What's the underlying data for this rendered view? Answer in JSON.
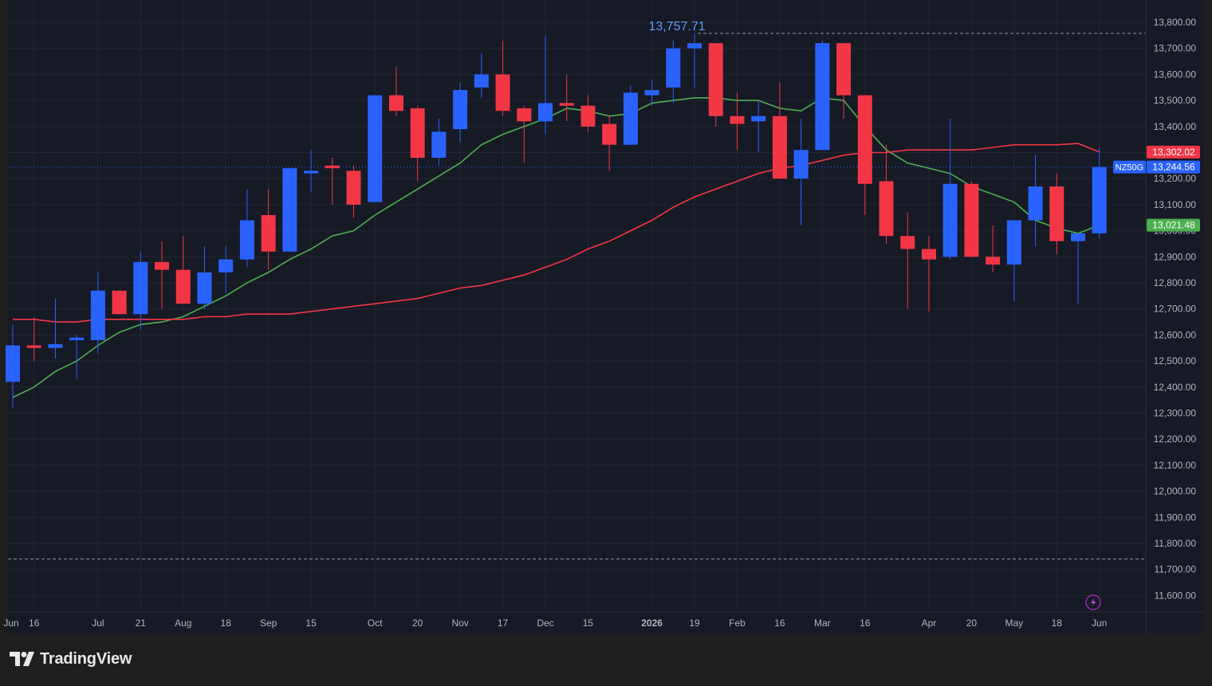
{
  "branding": {
    "logo_text": "TradingView"
  },
  "chart_data": {
    "type": "candlestick",
    "symbol": "NZ50G",
    "interval": "weekly",
    "y_axis": {
      "min": 11550,
      "max": 13850,
      "ticks": [
        11600,
        11700,
        11800,
        11900,
        12000,
        12100,
        12200,
        12300,
        12400,
        12500,
        12600,
        12700,
        12800,
        12900,
        13000,
        13100,
        13200,
        13300,
        13400,
        13500,
        13600,
        13700,
        13800
      ],
      "tick_labels": [
        "11,600.00",
        "11,700.00",
        "11,800.00",
        "11,900.00",
        "12,000.00",
        "12,100.00",
        "12,200.00",
        "12,300.00",
        "12,400.00",
        "12,500.00",
        "12,600.00",
        "12,700.00",
        "12,800.00",
        "12,900.00",
        "13,000.00",
        "13,100.00",
        "13,200.00",
        "13,300.00",
        "13,400.00",
        "13,500.00",
        "13,600.00",
        "13,700.00",
        "13,800.00"
      ]
    },
    "x_axis": {
      "labels": [
        {
          "text": "Jun",
          "bar": -0.8
        },
        {
          "text": "16",
          "bar": 1
        },
        {
          "text": "Jul",
          "bar": 4
        },
        {
          "text": "21",
          "bar": 6
        },
        {
          "text": "Aug",
          "bar": 8
        },
        {
          "text": "18",
          "bar": 10
        },
        {
          "text": "Sep",
          "bar": 12
        },
        {
          "text": "15",
          "bar": 14
        },
        {
          "text": "Oct",
          "bar": 17
        },
        {
          "text": "20",
          "bar": 19
        },
        {
          "text": "Nov",
          "bar": 21
        },
        {
          "text": "17",
          "bar": 23
        },
        {
          "text": "Dec",
          "bar": 25
        },
        {
          "text": "15",
          "bar": 27
        },
        {
          "text": "2026",
          "bar": 30
        },
        {
          "text": "19",
          "bar": 32
        },
        {
          "text": "Feb",
          "bar": 34
        },
        {
          "text": "16",
          "bar": 36
        },
        {
          "text": "Mar",
          "bar": 38
        },
        {
          "text": "16",
          "bar": 40
        },
        {
          "text": "Apr",
          "bar": 43
        },
        {
          "text": "20",
          "bar": 45
        },
        {
          "text": "May",
          "bar": 47
        },
        {
          "text": "18",
          "bar": 49
        },
        {
          "text": "Jun",
          "bar": 51
        }
      ]
    },
    "candles": [
      {
        "o": 12420,
        "h": 12640,
        "l": 12320,
        "c": 12560
      },
      {
        "o": 12560,
        "h": 12670,
        "l": 12500,
        "c": 12550
      },
      {
        "o": 12550,
        "h": 12740,
        "l": 12510,
        "c": 12565
      },
      {
        "o": 12580,
        "h": 12600,
        "l": 12430,
        "c": 12590
      },
      {
        "o": 12580,
        "h": 12840,
        "l": 12530,
        "c": 12770
      },
      {
        "o": 12770,
        "h": 12770,
        "l": 12680,
        "c": 12680
      },
      {
        "o": 12680,
        "h": 12920,
        "l": 12620,
        "c": 12880
      },
      {
        "o": 12880,
        "h": 12960,
        "l": 12700,
        "c": 12850
      },
      {
        "o": 12850,
        "h": 12980,
        "l": 12720,
        "c": 12720
      },
      {
        "o": 12720,
        "h": 12940,
        "l": 12700,
        "c": 12840
      },
      {
        "o": 12840,
        "h": 12940,
        "l": 12760,
        "c": 12890
      },
      {
        "o": 12890,
        "h": 13160,
        "l": 12860,
        "c": 13040
      },
      {
        "o": 13060,
        "h": 13160,
        "l": 12850,
        "c": 12920
      },
      {
        "o": 12920,
        "h": 13240,
        "l": 12920,
        "c": 13240
      },
      {
        "o": 13220,
        "h": 13310,
        "l": 13150,
        "c": 13230
      },
      {
        "o": 13250,
        "h": 13280,
        "l": 13100,
        "c": 13240
      },
      {
        "o": 13230,
        "h": 13250,
        "l": 13050,
        "c": 13100
      },
      {
        "o": 13110,
        "h": 13520,
        "l": 13110,
        "c": 13520
      },
      {
        "o": 13520,
        "h": 13630,
        "l": 13440,
        "c": 13460
      },
      {
        "o": 13470,
        "h": 13480,
        "l": 13190,
        "c": 13280
      },
      {
        "o": 13280,
        "h": 13430,
        "l": 13250,
        "c": 13380
      },
      {
        "o": 13390,
        "h": 13570,
        "l": 13340,
        "c": 13540
      },
      {
        "o": 13550,
        "h": 13680,
        "l": 13510,
        "c": 13600
      },
      {
        "o": 13600,
        "h": 13730,
        "l": 13440,
        "c": 13460
      },
      {
        "o": 13470,
        "h": 13480,
        "l": 13260,
        "c": 13420
      },
      {
        "o": 13420,
        "h": 13750,
        "l": 13370,
        "c": 13490
      },
      {
        "o": 13490,
        "h": 13600,
        "l": 13420,
        "c": 13480
      },
      {
        "o": 13480,
        "h": 13520,
        "l": 13380,
        "c": 13400
      },
      {
        "o": 13410,
        "h": 13440,
        "l": 13230,
        "c": 13330
      },
      {
        "o": 13330,
        "h": 13560,
        "l": 13330,
        "c": 13530
      },
      {
        "o": 13520,
        "h": 13580,
        "l": 13480,
        "c": 13540
      },
      {
        "o": 13550,
        "h": 13730,
        "l": 13490,
        "c": 13700
      },
      {
        "o": 13700,
        "h": 13757.71,
        "l": 13550,
        "c": 13720
      },
      {
        "o": 13720,
        "h": 13720,
        "l": 13400,
        "c": 13440
      },
      {
        "o": 13440,
        "h": 13530,
        "l": 13310,
        "c": 13410
      },
      {
        "o": 13420,
        "h": 13500,
        "l": 13300,
        "c": 13440
      },
      {
        "o": 13440,
        "h": 13570,
        "l": 13200,
        "c": 13200
      },
      {
        "o": 13200,
        "h": 13430,
        "l": 13020,
        "c": 13310
      },
      {
        "o": 13310,
        "h": 13730,
        "l": 13310,
        "c": 13720
      },
      {
        "o": 13720,
        "h": 13720,
        "l": 13430,
        "c": 13520
      },
      {
        "o": 13520,
        "h": 13520,
        "l": 13060,
        "c": 13180
      },
      {
        "o": 13190,
        "h": 13330,
        "l": 12950,
        "c": 12980
      },
      {
        "o": 12980,
        "h": 13070,
        "l": 12700,
        "c": 12930
      },
      {
        "o": 12930,
        "h": 12980,
        "l": 12690,
        "c": 12890
      },
      {
        "o": 12900,
        "h": 13430,
        "l": 12890,
        "c": 13180
      },
      {
        "o": 13180,
        "h": 13190,
        "l": 12900,
        "c": 12900
      },
      {
        "o": 12900,
        "h": 13020,
        "l": 12840,
        "c": 12870
      },
      {
        "o": 12870,
        "h": 13030,
        "l": 12730,
        "c": 13040
      },
      {
        "o": 13040,
        "h": 13290,
        "l": 12940,
        "c": 13170
      },
      {
        "o": 13170,
        "h": 13220,
        "l": 12910,
        "c": 12960
      },
      {
        "o": 12960,
        "h": 12990,
        "l": 12720,
        "c": 12990
      },
      {
        "o": 12990,
        "h": 13320,
        "l": 12970,
        "c": 13244.56
      }
    ],
    "series": [
      {
        "color": "#4caf50",
        "values": [
          12360,
          12400,
          12460,
          12500,
          12560,
          12610,
          12640,
          12650,
          12670,
          12710,
          12750,
          12800,
          12840,
          12890,
          12930,
          12980,
          13000,
          13060,
          13110,
          13160,
          13210,
          13260,
          13330,
          13370,
          13400,
          13430,
          13470,
          13460,
          13440,
          13450,
          13490,
          13500,
          13510,
          13510,
          13500,
          13500,
          13470,
          13460,
          13510,
          13500,
          13400,
          13310,
          13260,
          13240,
          13220,
          13170,
          13140,
          13110,
          13040,
          13010,
          12990,
          13021.48
        ]
      },
      {
        "color": "#f23645",
        "values": [
          12660,
          12660,
          12650,
          12650,
          12660,
          12660,
          12660,
          12660,
          12660,
          12670,
          12670,
          12680,
          12680,
          12680,
          12690,
          12700,
          12710,
          12720,
          12730,
          12740,
          12760,
          12780,
          12790,
          12810,
          12830,
          12860,
          12890,
          12930,
          12960,
          13000,
          13040,
          13090,
          13130,
          13160,
          13190,
          13220,
          13240,
          13250,
          13270,
          13290,
          13300,
          13300,
          13310,
          13310,
          13310,
          13310,
          13320,
          13330,
          13330,
          13330,
          13335,
          13302.02
        ]
      }
    ],
    "high_annotation": {
      "value": 13757.71,
      "label": "13,757.71",
      "bar": 32
    },
    "level_lines": [
      13757.71,
      11740
    ],
    "price_labels": [
      {
        "text": "13,302.02",
        "value": 13302.02,
        "color": "#f23645"
      },
      {
        "text": "13,244.56",
        "value": 13244.56,
        "color": "#2962ff",
        "symbol": "NZ50G"
      },
      {
        "text": "13,021.48",
        "value": 13021.48,
        "color": "#4caf50"
      }
    ]
  }
}
